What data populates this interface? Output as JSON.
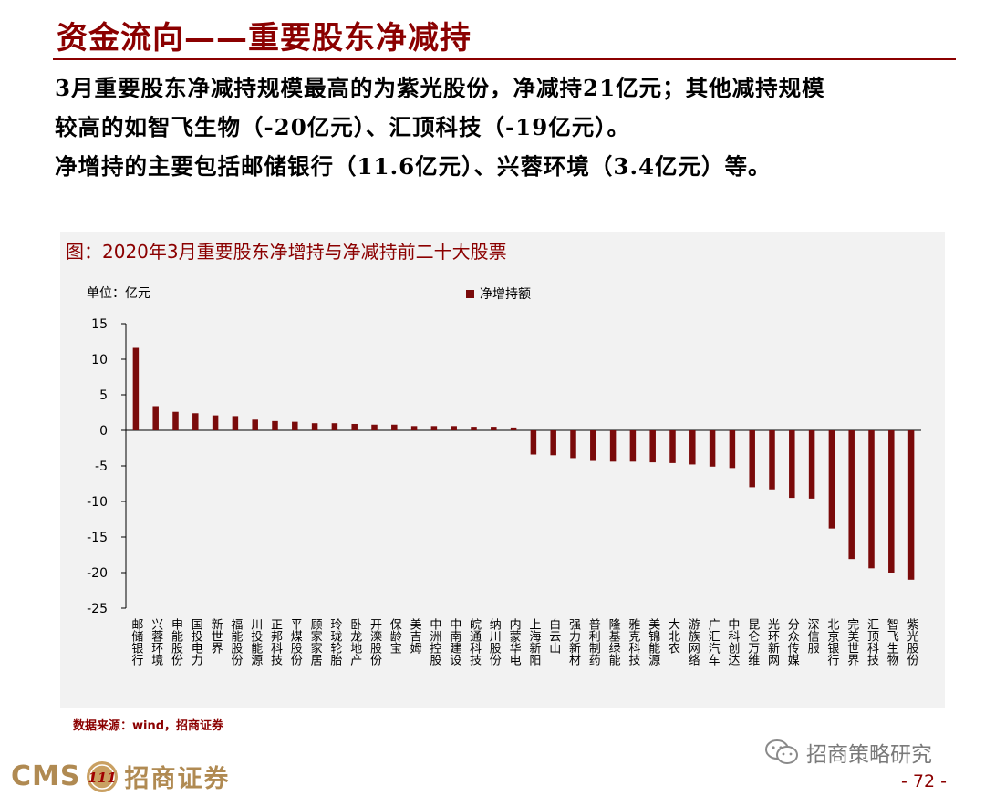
{
  "header": {
    "title": "资金流向——重要股东净减持"
  },
  "summary": {
    "line1": "3月重要股东净减持规模最高的为紫光股份，净减持21亿元；其他减持规模",
    "line2": "较高的如智飞生物（-20亿元）、汇顶科技（-19亿元）。",
    "line3": "净增持的主要包括邮储银行（11.6亿元）、兴蓉环境（3.4亿元）等。"
  },
  "chart_header": {
    "title": "图：2020年3月重要股东净增持与净减持前二十大股票",
    "unit": "单位：亿元"
  },
  "chart_data": {
    "type": "bar",
    "title": "图：2020年3月重要股东净增持与净减持前二十大股票",
    "ylabel": "单位：亿元",
    "ylim": [
      -25,
      15
    ],
    "yticks": [
      15,
      10,
      5,
      0,
      -5,
      -10,
      -15,
      -20,
      -25
    ],
    "grid": false,
    "legend_position": "top",
    "color": "#7a0a0a",
    "categories": [
      "邮储银行",
      "兴蓉环境",
      "申能股份",
      "国投电力",
      "新世界",
      "福能股份",
      "川投能源",
      "正邦科技",
      "平煤股份",
      "顾家家居",
      "玲珑轮胎",
      "卧龙地产",
      "开滦股份",
      "保龄宝",
      "美吉姆",
      "中洲控股",
      "中南建设",
      "皖通科技",
      "纳川股份",
      "内蒙华电",
      "上海新阳",
      "白云山",
      "强力新材",
      "普利制药",
      "隆基绿能",
      "雅克科技",
      "美锦能源",
      "大北农",
      "游族网络",
      "广汇汽车",
      "中科创达",
      "昆仑万维",
      "光环新网",
      "分众传媒",
      "深信服",
      "北京银行",
      "完美世界",
      "汇顶科技",
      "智飞生物",
      "紫光股份"
    ],
    "series": [
      {
        "name": "净增持额",
        "values": [
          11.6,
          3.4,
          2.6,
          2.4,
          2.1,
          2.0,
          1.5,
          1.3,
          1.2,
          1.0,
          1.0,
          0.9,
          0.8,
          0.8,
          0.6,
          0.6,
          0.6,
          0.5,
          0.5,
          0.4,
          -3.4,
          -3.5,
          -3.9,
          -4.3,
          -4.4,
          -4.4,
          -4.5,
          -4.6,
          -4.8,
          -5.1,
          -5.3,
          -8.0,
          -8.3,
          -9.5,
          -9.6,
          -13.8,
          -18.1,
          -19.4,
          -20.0,
          -21.0
        ]
      }
    ]
  },
  "footer": {
    "source": "数据来源：wind，招商证券",
    "wechat_label": "招商策略研究",
    "logo_en": "CMS",
    "logo_badge": "111",
    "logo_cn": "招商证券",
    "page_number": "- 72 -"
  }
}
